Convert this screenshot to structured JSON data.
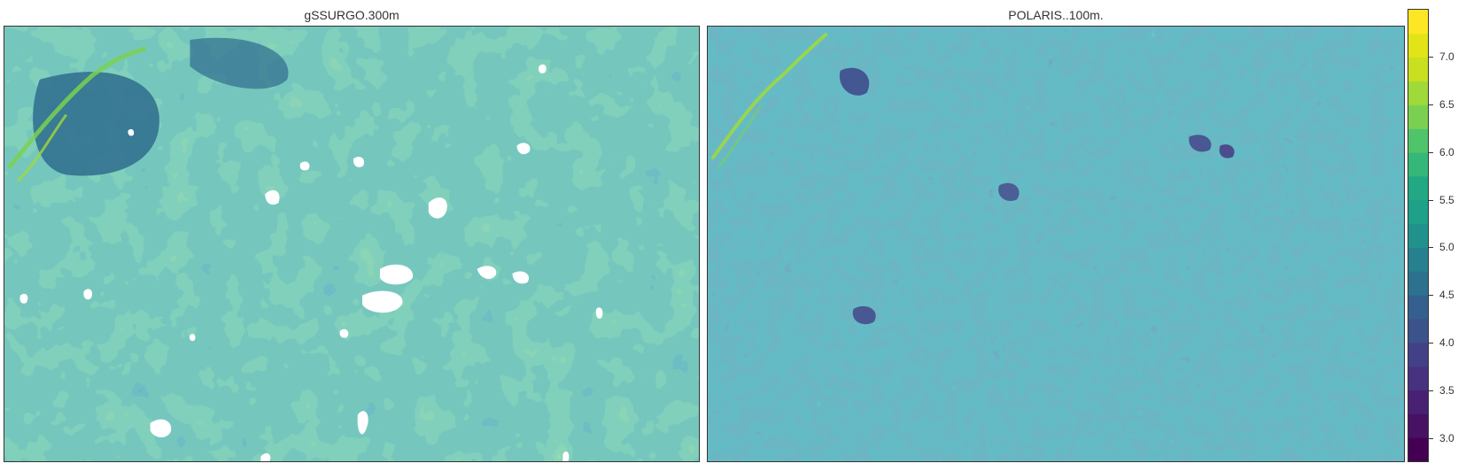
{
  "panels": [
    {
      "title": "gSSURGO.300m"
    },
    {
      "title": "POLARIS..100m."
    }
  ],
  "legend": {
    "min": 2.75,
    "max": 7.5,
    "step": 0.25,
    "ticks": [
      "3.0",
      "3.5",
      "4.0",
      "4.5",
      "5.0",
      "5.5",
      "6.0",
      "6.5",
      "7.0"
    ],
    "palette": [
      "#440154",
      "#471164",
      "#482173",
      "#46327e",
      "#424086",
      "#3b528b",
      "#355f8d",
      "#2c728e",
      "#27808e",
      "#21918c",
      "#1fa088",
      "#22a884",
      "#35b779",
      "#50c46a",
      "#7ad151",
      "#a0da39",
      "#c8e020",
      "#e2e418",
      "#fde725"
    ]
  },
  "colors": {
    "no_data": "#ffffff",
    "frame": "#333333"
  }
}
